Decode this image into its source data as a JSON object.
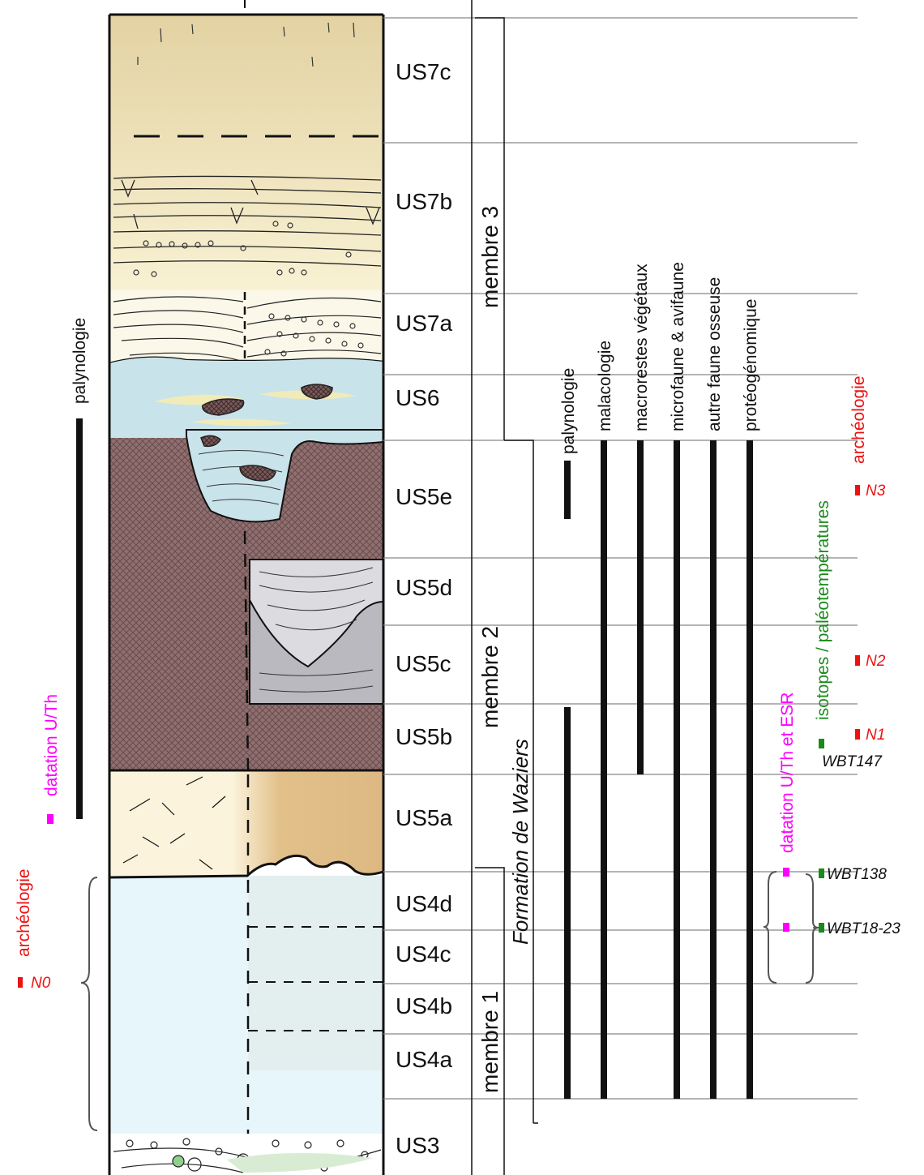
{
  "colors": {
    "black": "#111111",
    "magenta": "#ff00ff",
    "green": "#1a8a1a",
    "red": "#ee1111",
    "us7c_fill": "#efe3b8",
    "us7a_fill": "#fbf8ea",
    "us6_fill": "#c9e3ea",
    "us5_fill": "#8f6f6f",
    "us5cd_fill": "#c9c9cc",
    "us5a_fill": "#e6c895",
    "us4_fill": "#e7f6fa",
    "us3_fill": "#ffffff"
  },
  "units": [
    "US7c",
    "US7b",
    "US7a",
    "US6",
    "US5e",
    "US5d",
    "US5c",
    "US5b",
    "US5a",
    "US4d",
    "US4c",
    "US4b",
    "US4a",
    "US3"
  ],
  "members": [
    "membre 3",
    "membre 2",
    "membre 1"
  ],
  "formation": "Formation de Waziers",
  "studies": [
    "palynologie",
    "malacologie",
    "macrorestes végétaux",
    "microfaune & avifaune",
    "autre faune osseuse",
    "protéogénomique"
  ],
  "left_annotations": {
    "palynologie": "palynologie",
    "datation": "datation U/Th",
    "archeologie": "archéologie",
    "level_n0": "N0"
  },
  "right_annotations": {
    "datation": "datation U/Th et ESR",
    "isotopes": "isotopes / paléotempératures",
    "archeologie": "archéologie"
  },
  "levels": [
    "N3",
    "N2",
    "N1"
  ],
  "samples": [
    "WBT147",
    "WBT138",
    "WBT18-23"
  ]
}
